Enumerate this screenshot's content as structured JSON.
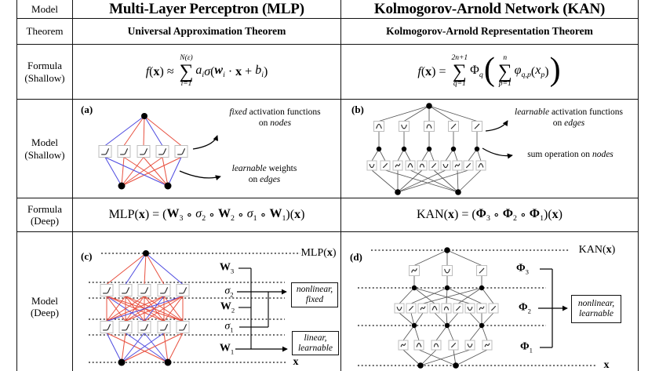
{
  "table": {
    "row_labels": [
      "Model",
      "Theorem",
      "Formula\n(Shallow)",
      "Model\n(Shallow)",
      "Formula\n(Deep)",
      "Model\n(Deep)"
    ],
    "col_titles": [
      "Multi-Layer Perceptron (MLP)",
      "Kolmogorov-Arnold Network (KAN)"
    ],
    "theorems": [
      "Universal Approximation Theorem",
      "Kolmogorov-Arnold Representation Theorem"
    ]
  },
  "formulas": {
    "mlp_shallow": [
      {
        "t": "f",
        "i": 1
      },
      {
        "t": "("
      },
      {
        "t": "x",
        "b": 1
      },
      {
        "t": ") ≈ "
      },
      {
        "sum": 1,
        "up": "N(ε)",
        "lo": "i=1"
      },
      {
        "t": "a",
        "i": 1,
        "sub": "i"
      },
      {
        "t": "σ",
        "i": 1
      },
      {
        "t": "("
      },
      {
        "t": "w",
        "b": 1,
        "i": 1,
        "sub": "i"
      },
      {
        "t": " · "
      },
      {
        "t": "x",
        "b": 1
      },
      {
        "t": " + "
      },
      {
        "t": "b",
        "i": 1,
        "sub": "i"
      },
      {
        "t": ")"
      }
    ],
    "kan_shallow": [
      {
        "t": "f",
        "i": 1
      },
      {
        "t": "("
      },
      {
        "t": "x",
        "b": 1
      },
      {
        "t": ") = "
      },
      {
        "sum": 1,
        "up": "2n+1",
        "lo": "q=1"
      },
      {
        "t": "Φ",
        "sub": "q"
      },
      {
        "big": "("
      },
      {
        "sum": 1,
        "up": "n",
        "lo": "p=1"
      },
      {
        "t": "φ",
        "i": 1,
        "sub": "q,p"
      },
      {
        "t": "("
      },
      {
        "t": "x",
        "i": 1,
        "sub": "p"
      },
      {
        "t": ")"
      },
      {
        "big": ")"
      }
    ],
    "mlp_deep": [
      {
        "t": "MLP("
      },
      {
        "t": "x",
        "b": 1
      },
      {
        "t": ") = ("
      },
      {
        "t": "W",
        "b": 1,
        "sub": "3"
      },
      {
        "t": " ∘ "
      },
      {
        "t": "σ",
        "i": 1,
        "sub": "2"
      },
      {
        "t": " ∘ "
      },
      {
        "t": "W",
        "b": 1,
        "sub": "2"
      },
      {
        "t": " ∘ "
      },
      {
        "t": "σ",
        "i": 1,
        "sub": "1"
      },
      {
        "t": " ∘ "
      },
      {
        "t": "W",
        "b": 1,
        "sub": "1"
      },
      {
        "t": ")("
      },
      {
        "t": "x",
        "b": 1
      },
      {
        "t": ")"
      }
    ],
    "kan_deep": [
      {
        "t": "KAN("
      },
      {
        "t": "x",
        "b": 1
      },
      {
        "t": ") = ("
      },
      {
        "t": "Φ",
        "b": 1,
        "sub": "3"
      },
      {
        "t": " ∘ "
      },
      {
        "t": "Φ",
        "b": 1,
        "sub": "2"
      },
      {
        "t": " ∘ "
      },
      {
        "t": "Φ",
        "b": 1,
        "sub": "1"
      },
      {
        "t": ")("
      },
      {
        "t": "x",
        "b": 1
      },
      {
        "t": ")"
      }
    ]
  },
  "panels": {
    "a": {
      "label": "(a)",
      "ann1": [
        [
          {
            "t": "fixed",
            "i": 1
          },
          {
            "t": " activation functions"
          }
        ],
        [
          {
            "t": "on "
          },
          {
            "t": "nodes",
            "i": 1
          }
        ]
      ],
      "ann2": [
        [
          {
            "t": "learnable",
            "i": 1
          },
          {
            "t": " weights"
          }
        ],
        [
          {
            "t": "on "
          },
          {
            "t": "edges",
            "i": 1
          }
        ]
      ]
    },
    "b": {
      "label": "(b)",
      "ann1": [
        [
          {
            "t": "learnable",
            "i": 1
          },
          {
            "t": " activation functions"
          }
        ],
        [
          {
            "t": "on "
          },
          {
            "t": "edges",
            "i": 1
          }
        ]
      ],
      "ann2": [
        [
          {
            "t": "sum operation on "
          },
          {
            "t": "nodes",
            "i": 1
          }
        ]
      ]
    },
    "c": {
      "label": "(c)",
      "top_label": [
        {
          "t": "MLP("
        },
        {
          "t": "x",
          "b": 1
        },
        {
          "t": ")"
        }
      ],
      "bottom_label": [
        {
          "t": "x",
          "b": 1
        }
      ],
      "layer_labels": [
        [
          {
            "t": "W",
            "b": 1,
            "sub": "3"
          }
        ],
        [
          {
            "t": "σ",
            "i": 1,
            "sub": "2"
          }
        ],
        [
          {
            "t": "W",
            "b": 1,
            "sub": "2"
          }
        ],
        [
          {
            "t": "σ",
            "i": 1,
            "sub": "1"
          }
        ],
        [
          {
            "t": "W",
            "b": 1,
            "sub": "1"
          }
        ]
      ],
      "box1": [
        [
          {
            "t": "nonlinear,",
            "i": 1
          }
        ],
        [
          {
            "t": "fixed",
            "i": 1
          }
        ]
      ],
      "box2": [
        [
          {
            "t": "linear,",
            "i": 1
          }
        ],
        [
          {
            "t": "learnable",
            "i": 1
          }
        ]
      ]
    },
    "d": {
      "label": "(d)",
      "top_label": [
        {
          "t": "KAN("
        },
        {
          "t": "x",
          "b": 1
        },
        {
          "t": ")"
        }
      ],
      "bottom_label": [
        {
          "t": "x",
          "b": 1
        }
      ],
      "layer_labels": [
        [
          {
            "t": "Φ",
            "b": 1,
            "sub": "3"
          }
        ],
        [
          {
            "t": "Φ",
            "b": 1,
            "sub": "2"
          }
        ],
        [
          {
            "t": "Φ",
            "b": 1,
            "sub": "1"
          }
        ]
      ],
      "box1": [
        [
          {
            "t": "nonlinear,",
            "i": 1
          }
        ],
        [
          {
            "t": "learnable",
            "i": 1
          }
        ]
      ]
    }
  },
  "colors": {
    "edge_red": "#e8503f",
    "edge_blue": "#4d4ae0",
    "kan_edge": "#565656",
    "box_border": "#bdbdbd",
    "glyph": "#2a2a2a",
    "ink": "#111111"
  }
}
